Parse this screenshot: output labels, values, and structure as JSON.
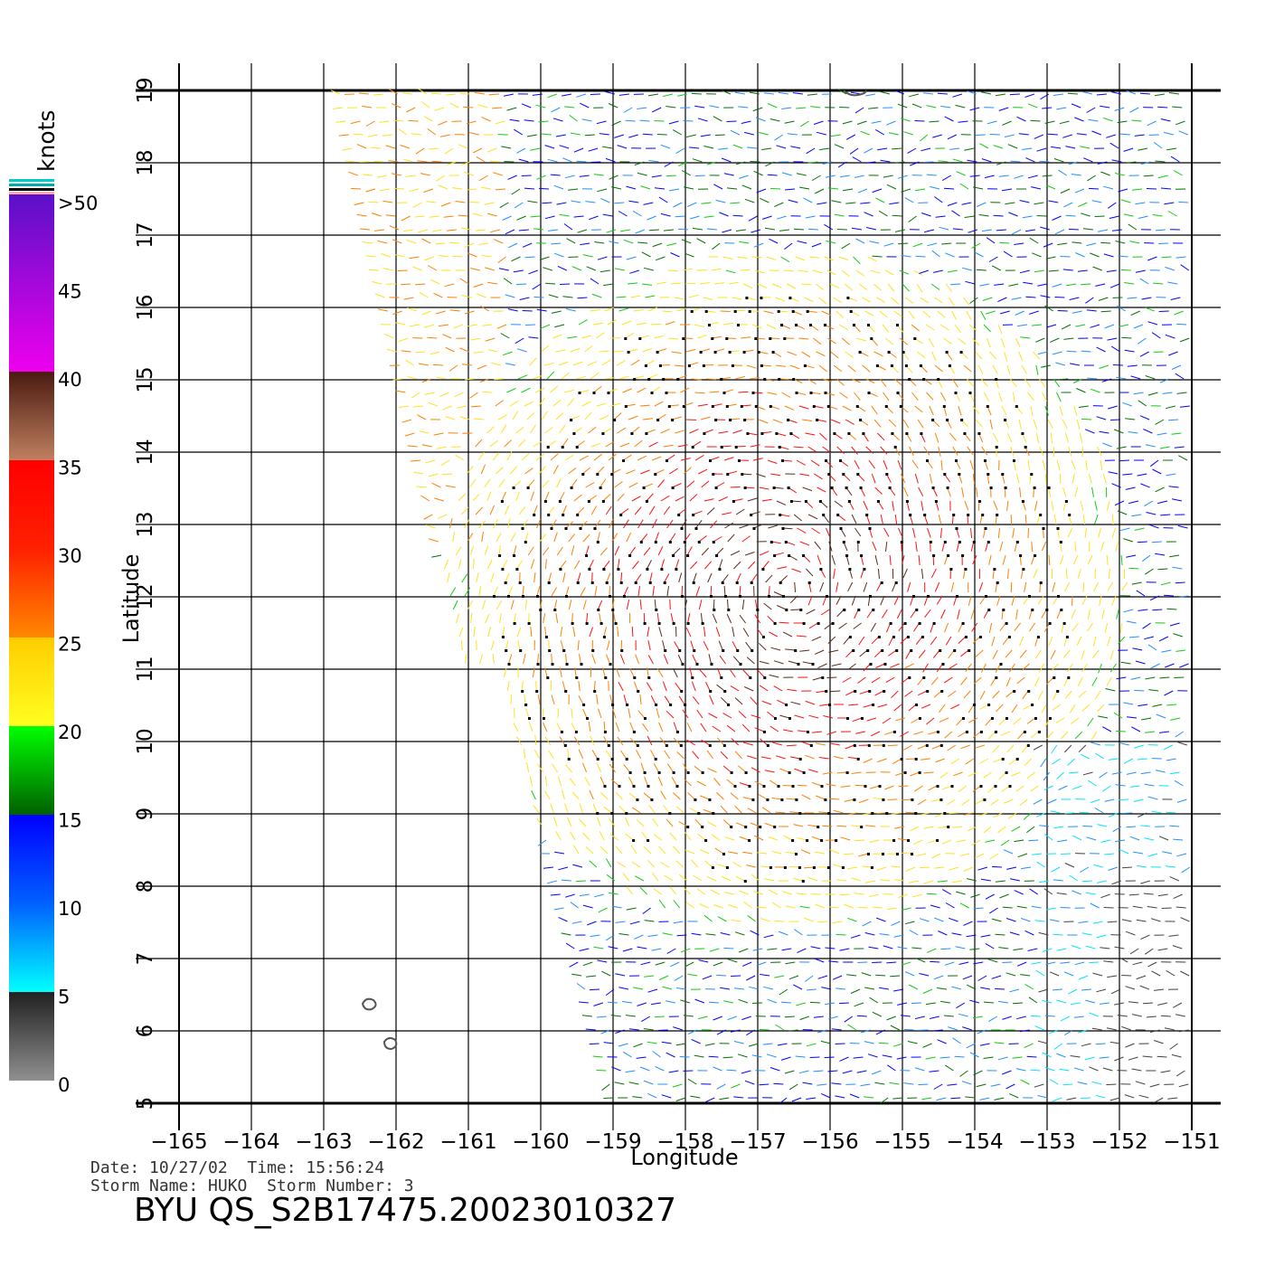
{
  "map": {
    "x_axis_title": "Longitude",
    "y_axis_title": "Latitude",
    "lon_ticks": [
      "−165",
      "−164",
      "−163",
      "−162",
      "−161",
      "−160",
      "−159",
      "−158",
      "−157",
      "−156",
      "−155",
      "−154",
      "−153",
      "−152",
      "−151"
    ],
    "lat_ticks": [
      "5",
      "6",
      "7",
      "8",
      "9",
      "10",
      "11",
      "12",
      "13",
      "14",
      "15",
      "16",
      "17",
      "18",
      "19"
    ],
    "lon_range": [
      -165,
      -150.5
    ],
    "lat_range": [
      5,
      19
    ]
  },
  "legend": {
    "unit": "knots",
    "labels": [
      ">50",
      "45",
      "40",
      "35",
      "30",
      "25",
      "20",
      "15",
      "10",
      "5",
      "0"
    ],
    "colors": {
      "purple": "#6a0dcf",
      "magenta": "#ee00ee",
      "brown": "#5a2a1a",
      "tan": "#c08060",
      "red": "#ff1010",
      "orange": "#ff7f00",
      "yellow": "#ffe020",
      "green": "#10cc10",
      "darkgreen": "#007000",
      "blue": "#0000ff",
      "lightblue": "#1e90ff",
      "cyan": "#00e5ff",
      "gray": "#404040"
    }
  },
  "info": {
    "date_line": "Date: 10/27/02  Time: 15:56:24",
    "storm_line": "Storm Name: HUKO  Storm Number: 3",
    "file_id": "BYU QS_S2B17475.20023010327"
  }
}
